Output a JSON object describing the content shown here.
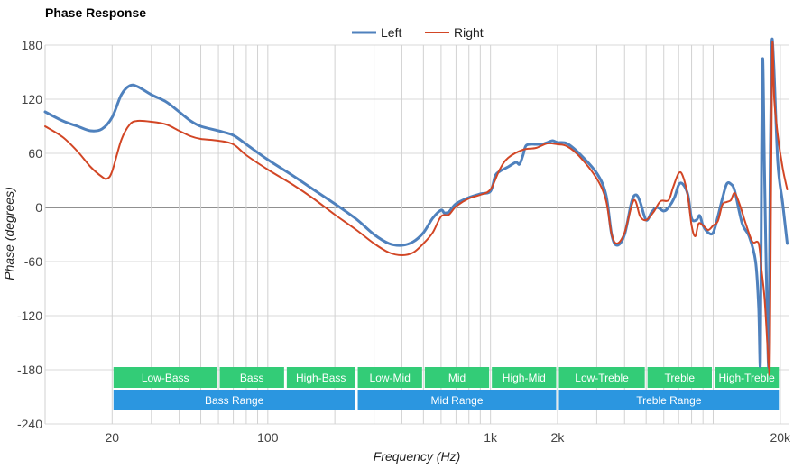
{
  "chart_data": {
    "type": "line",
    "title": "Phase Response",
    "xlabel": "Frequency (Hz)",
    "ylabel": "Phase (degrees)",
    "x_scale": "log",
    "xlim": [
      10,
      22000
    ],
    "ylim": [
      -240,
      180
    ],
    "x_ticks": [
      {
        "value": 20,
        "label": "20"
      },
      {
        "value": 100,
        "label": "100"
      },
      {
        "value": 1000,
        "label": "1k"
      },
      {
        "value": 2000,
        "label": "2k"
      },
      {
        "value": 20000,
        "label": "20k"
      }
    ],
    "y_ticks": [
      {
        "value": 180,
        "label": "180"
      },
      {
        "value": 120,
        "label": "120"
      },
      {
        "value": 60,
        "label": "60"
      },
      {
        "value": 0,
        "label": "0"
      },
      {
        "value": -60,
        "label": "-60"
      },
      {
        "value": -120,
        "label": "-120"
      },
      {
        "value": -180,
        "label": "-180"
      },
      {
        "value": -240,
        "label": "-240"
      }
    ],
    "legend_position": "top",
    "grid": true,
    "series": [
      {
        "name": "Left",
        "color": "#4F81BD",
        "points": [
          [
            10,
            106
          ],
          [
            12,
            96
          ],
          [
            14,
            90
          ],
          [
            16,
            85
          ],
          [
            18,
            87
          ],
          [
            20,
            100
          ],
          [
            22,
            125
          ],
          [
            24,
            135
          ],
          [
            26,
            134
          ],
          [
            30,
            125
          ],
          [
            35,
            117
          ],
          [
            40,
            106
          ],
          [
            45,
            96
          ],
          [
            50,
            90
          ],
          [
            60,
            85
          ],
          [
            70,
            80
          ],
          [
            80,
            70
          ],
          [
            100,
            53
          ],
          [
            130,
            35
          ],
          [
            160,
            20
          ],
          [
            200,
            4
          ],
          [
            250,
            -13
          ],
          [
            300,
            -30
          ],
          [
            350,
            -40
          ],
          [
            400,
            -42
          ],
          [
            450,
            -38
          ],
          [
            500,
            -28
          ],
          [
            550,
            -12
          ],
          [
            600,
            -3
          ],
          [
            620,
            -6
          ],
          [
            650,
            -5
          ],
          [
            700,
            4
          ],
          [
            800,
            11
          ],
          [
            900,
            15
          ],
          [
            1000,
            18
          ],
          [
            1050,
            35
          ],
          [
            1100,
            40
          ],
          [
            1200,
            45
          ],
          [
            1300,
            50
          ],
          [
            1350,
            48
          ],
          [
            1400,
            58
          ],
          [
            1450,
            69
          ],
          [
            1600,
            70
          ],
          [
            1700,
            70
          ],
          [
            1800,
            72
          ],
          [
            1900,
            74
          ],
          [
            2000,
            72
          ],
          [
            2200,
            71
          ],
          [
            2500,
            60
          ],
          [
            3000,
            38
          ],
          [
            3300,
            14
          ],
          [
            3500,
            -30
          ],
          [
            3700,
            -42
          ],
          [
            4000,
            -30
          ],
          [
            4300,
            6
          ],
          [
            4500,
            14
          ],
          [
            4700,
            6
          ],
          [
            5000,
            -14
          ],
          [
            5300,
            -5
          ],
          [
            5600,
            0
          ],
          [
            6000,
            -4
          ],
          [
            6300,
            0
          ],
          [
            6700,
            11
          ],
          [
            7000,
            25
          ],
          [
            7300,
            26
          ],
          [
            7700,
            14
          ],
          [
            8000,
            -12
          ],
          [
            8400,
            -14
          ],
          [
            8700,
            -9
          ],
          [
            9000,
            -20
          ],
          [
            9500,
            -28
          ],
          [
            10000,
            -28
          ],
          [
            10500,
            -10
          ],
          [
            11000,
            10
          ],
          [
            11500,
            26
          ],
          [
            12000,
            26
          ],
          [
            12500,
            18
          ],
          [
            13500,
            -18
          ],
          [
            14500,
            -32
          ],
          [
            15500,
            -60
          ],
          [
            16000,
            -110
          ],
          [
            16300,
            -170
          ],
          [
            16500,
            60
          ],
          [
            16700,
            165
          ],
          [
            17000,
            40
          ],
          [
            17500,
            -130
          ],
          [
            17800,
            -168
          ],
          [
            18000,
            20
          ],
          [
            18300,
            176
          ],
          [
            18700,
            160
          ],
          [
            19500,
            50
          ],
          [
            20500,
            5
          ],
          [
            21500,
            -40
          ]
        ]
      },
      {
        "name": "Right",
        "color": "#D24625",
        "points": [
          [
            10,
            90
          ],
          [
            12,
            78
          ],
          [
            14,
            62
          ],
          [
            16,
            45
          ],
          [
            18,
            34
          ],
          [
            19,
            32
          ],
          [
            20,
            40
          ],
          [
            22,
            75
          ],
          [
            24,
            92
          ],
          [
            26,
            96
          ],
          [
            30,
            95
          ],
          [
            35,
            92
          ],
          [
            40,
            85
          ],
          [
            45,
            79
          ],
          [
            50,
            76
          ],
          [
            60,
            74
          ],
          [
            70,
            70
          ],
          [
            80,
            58
          ],
          [
            100,
            42
          ],
          [
            130,
            25
          ],
          [
            160,
            10
          ],
          [
            200,
            -8
          ],
          [
            250,
            -25
          ],
          [
            300,
            -40
          ],
          [
            350,
            -50
          ],
          [
            400,
            -53
          ],
          [
            450,
            -50
          ],
          [
            500,
            -40
          ],
          [
            550,
            -28
          ],
          [
            600,
            -10
          ],
          [
            650,
            -8
          ],
          [
            700,
            1
          ],
          [
            800,
            10
          ],
          [
            900,
            14
          ],
          [
            1000,
            20
          ],
          [
            1100,
            42
          ],
          [
            1200,
            55
          ],
          [
            1400,
            64
          ],
          [
            1600,
            66
          ],
          [
            1800,
            71
          ],
          [
            2000,
            70
          ],
          [
            2200,
            68
          ],
          [
            2500,
            57
          ],
          [
            3000,
            32
          ],
          [
            3300,
            8
          ],
          [
            3500,
            -30
          ],
          [
            3700,
            -40
          ],
          [
            4000,
            -28
          ],
          [
            4400,
            8
          ],
          [
            4700,
            -10
          ],
          [
            5000,
            -14
          ],
          [
            5400,
            -5
          ],
          [
            5800,
            7
          ],
          [
            6300,
            8
          ],
          [
            6600,
            22
          ],
          [
            7000,
            38
          ],
          [
            7300,
            35
          ],
          [
            7700,
            12
          ],
          [
            8000,
            -20
          ],
          [
            8300,
            -32
          ],
          [
            8600,
            -18
          ],
          [
            9000,
            -20
          ],
          [
            9500,
            -25
          ],
          [
            10000,
            -20
          ],
          [
            10500,
            -15
          ],
          [
            11000,
            3
          ],
          [
            11500,
            6
          ],
          [
            12000,
            8
          ],
          [
            12500,
            16
          ],
          [
            13200,
            2
          ],
          [
            14000,
            -18
          ],
          [
            15000,
            -38
          ],
          [
            16000,
            -40
          ],
          [
            16500,
            -70
          ],
          [
            17000,
            -100
          ],
          [
            17500,
            -150
          ],
          [
            17800,
            -178
          ],
          [
            18000,
            -150
          ],
          [
            18400,
            170
          ],
          [
            18800,
            120
          ],
          [
            19500,
            80
          ],
          [
            20500,
            44
          ],
          [
            21500,
            20
          ]
        ]
      }
    ],
    "band_rows": [
      {
        "name": "detail",
        "color": "#33CC77",
        "bands": [
          {
            "label": "Low-Bass",
            "from": 20,
            "to": 60
          },
          {
            "label": "Bass",
            "from": 60,
            "to": 120
          },
          {
            "label": "High-Bass",
            "from": 120,
            "to": 250
          },
          {
            "label": "Low-Mid",
            "from": 250,
            "to": 500
          },
          {
            "label": "Mid",
            "from": 500,
            "to": 1000
          },
          {
            "label": "High-Mid",
            "from": 1000,
            "to": 2000
          },
          {
            "label": "Low-Treble",
            "from": 2000,
            "to": 5000
          },
          {
            "label": "Treble",
            "from": 5000,
            "to": 10000
          },
          {
            "label": "High-Treble",
            "from": 10000,
            "to": 20000
          }
        ]
      },
      {
        "name": "range",
        "color": "#2B96E0",
        "bands": [
          {
            "label": "Bass Range",
            "from": 20,
            "to": 250
          },
          {
            "label": "Mid Range",
            "from": 250,
            "to": 2000
          },
          {
            "label": "Treble Range",
            "from": 2000,
            "to": 20000
          }
        ]
      }
    ]
  }
}
